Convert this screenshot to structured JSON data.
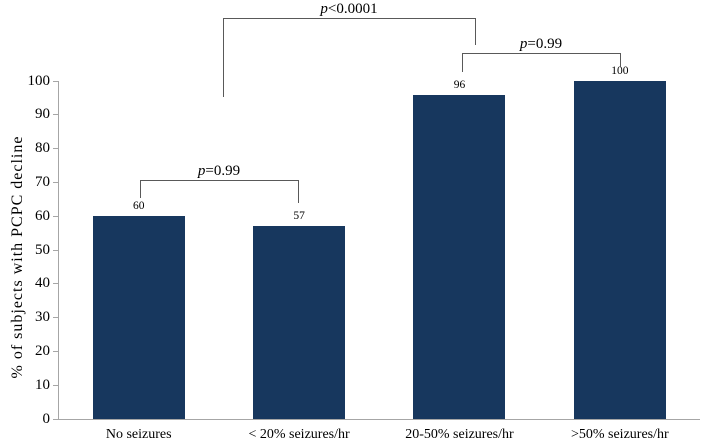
{
  "chart_data": {
    "type": "bar",
    "title": "",
    "ylabel": "% of subjects with PCPC decline",
    "xlabel": "",
    "categories": [
      "No seizures",
      "< 20% seizures/hr",
      "20-50% seizures/hr",
      ">50% seizures/hr"
    ],
    "values": [
      60,
      57,
      96,
      100
    ],
    "value_labels": [
      "60",
      "57",
      "96",
      "100"
    ],
    "ylim": [
      0,
      100
    ],
    "ytick_step": 10,
    "ytick_labels": [
      "0",
      "10",
      "20",
      "30",
      "40",
      "50",
      "60",
      "70",
      "80",
      "90",
      "100"
    ],
    "grid": "off",
    "legend": "none",
    "bar_color": "#17375E",
    "axis_color": "#A6A6A6",
    "bracket_color": "#595959",
    "significance_brackets": [
      {
        "text": "p<0.0001",
        "compares": [
          "No seizures / < 20% seizures/hr",
          "20-50% seizures/hr"
        ],
        "y_top": 18,
        "x_left": 223,
        "x_right": 475,
        "left_leg_bottom": 97,
        "right_leg_bottom": 45
      },
      {
        "text": "p=0.99",
        "compares": [
          "20-50% seizures/hr",
          ">50% seizures/hr"
        ],
        "y_top": 53,
        "x_left": 462,
        "x_right": 620,
        "left_leg_bottom": 72,
        "right_leg_bottom": 67
      },
      {
        "text": "p=0.99",
        "compares": [
          "No seizures",
          "< 20% seizures/hr"
        ],
        "y_top": 180,
        "x_left": 140,
        "x_right": 298,
        "left_leg_bottom": 198,
        "right_leg_bottom": 203
      }
    ]
  }
}
